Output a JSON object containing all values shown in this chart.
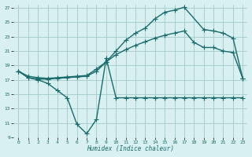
{
  "xlabel": "Humidex (Indice chaleur)",
  "bg_color": "#d8f0f0",
  "grid_color": "#aacece",
  "line_color": "#1a6b6b",
  "xlim": [
    -0.5,
    23.5
  ],
  "ylim": [
    9,
    27.5
  ],
  "xticks": [
    0,
    1,
    2,
    3,
    4,
    5,
    6,
    7,
    8,
    9,
    10,
    11,
    12,
    13,
    14,
    15,
    16,
    17,
    18,
    19,
    20,
    21,
    22,
    23
  ],
  "yticks": [
    9,
    11,
    13,
    15,
    17,
    19,
    21,
    23,
    25,
    27
  ],
  "curve_top_x": [
    0,
    1,
    2,
    3,
    4,
    5,
    6,
    7,
    8,
    9,
    10,
    11,
    12,
    13,
    14,
    15,
    16,
    17,
    19,
    20,
    21,
    22,
    23
  ],
  "curve_top_y": [
    18.2,
    17.3,
    17.1,
    17.1,
    17.2,
    17.3,
    17.4,
    17.5,
    18.2,
    19.5,
    21.0,
    22.5,
    23.5,
    24.2,
    25.5,
    26.4,
    26.7,
    27.1,
    24.0,
    23.8,
    23.5,
    22.8,
    17.2
  ],
  "curve_mid_x": [
    0,
    1,
    2,
    3,
    4,
    5,
    6,
    7,
    8,
    9,
    10,
    11,
    12,
    13,
    14,
    15,
    16,
    17,
    18,
    19,
    20,
    21,
    22,
    23
  ],
  "curve_mid_y": [
    18.2,
    17.5,
    17.3,
    17.2,
    17.3,
    17.4,
    17.5,
    17.6,
    18.5,
    19.5,
    20.5,
    21.2,
    21.8,
    22.3,
    22.8,
    23.2,
    23.5,
    23.8,
    22.2,
    21.5,
    21.5,
    21.0,
    20.8,
    17.2
  ],
  "curve_bot_x": [
    0,
    1,
    2,
    3,
    4,
    5,
    6,
    7,
    8,
    9,
    10,
    11,
    12,
    13,
    14,
    15,
    16,
    17,
    18,
    19,
    20,
    21,
    22,
    23
  ],
  "curve_bot_y": [
    18.2,
    17.3,
    17.0,
    16.5,
    15.5,
    14.5,
    10.8,
    9.5,
    11.5,
    20.0,
    14.5,
    14.5,
    14.5,
    14.5,
    14.5,
    14.5,
    14.5,
    14.5,
    14.5,
    14.5,
    14.5,
    14.5,
    14.5,
    14.5
  ]
}
